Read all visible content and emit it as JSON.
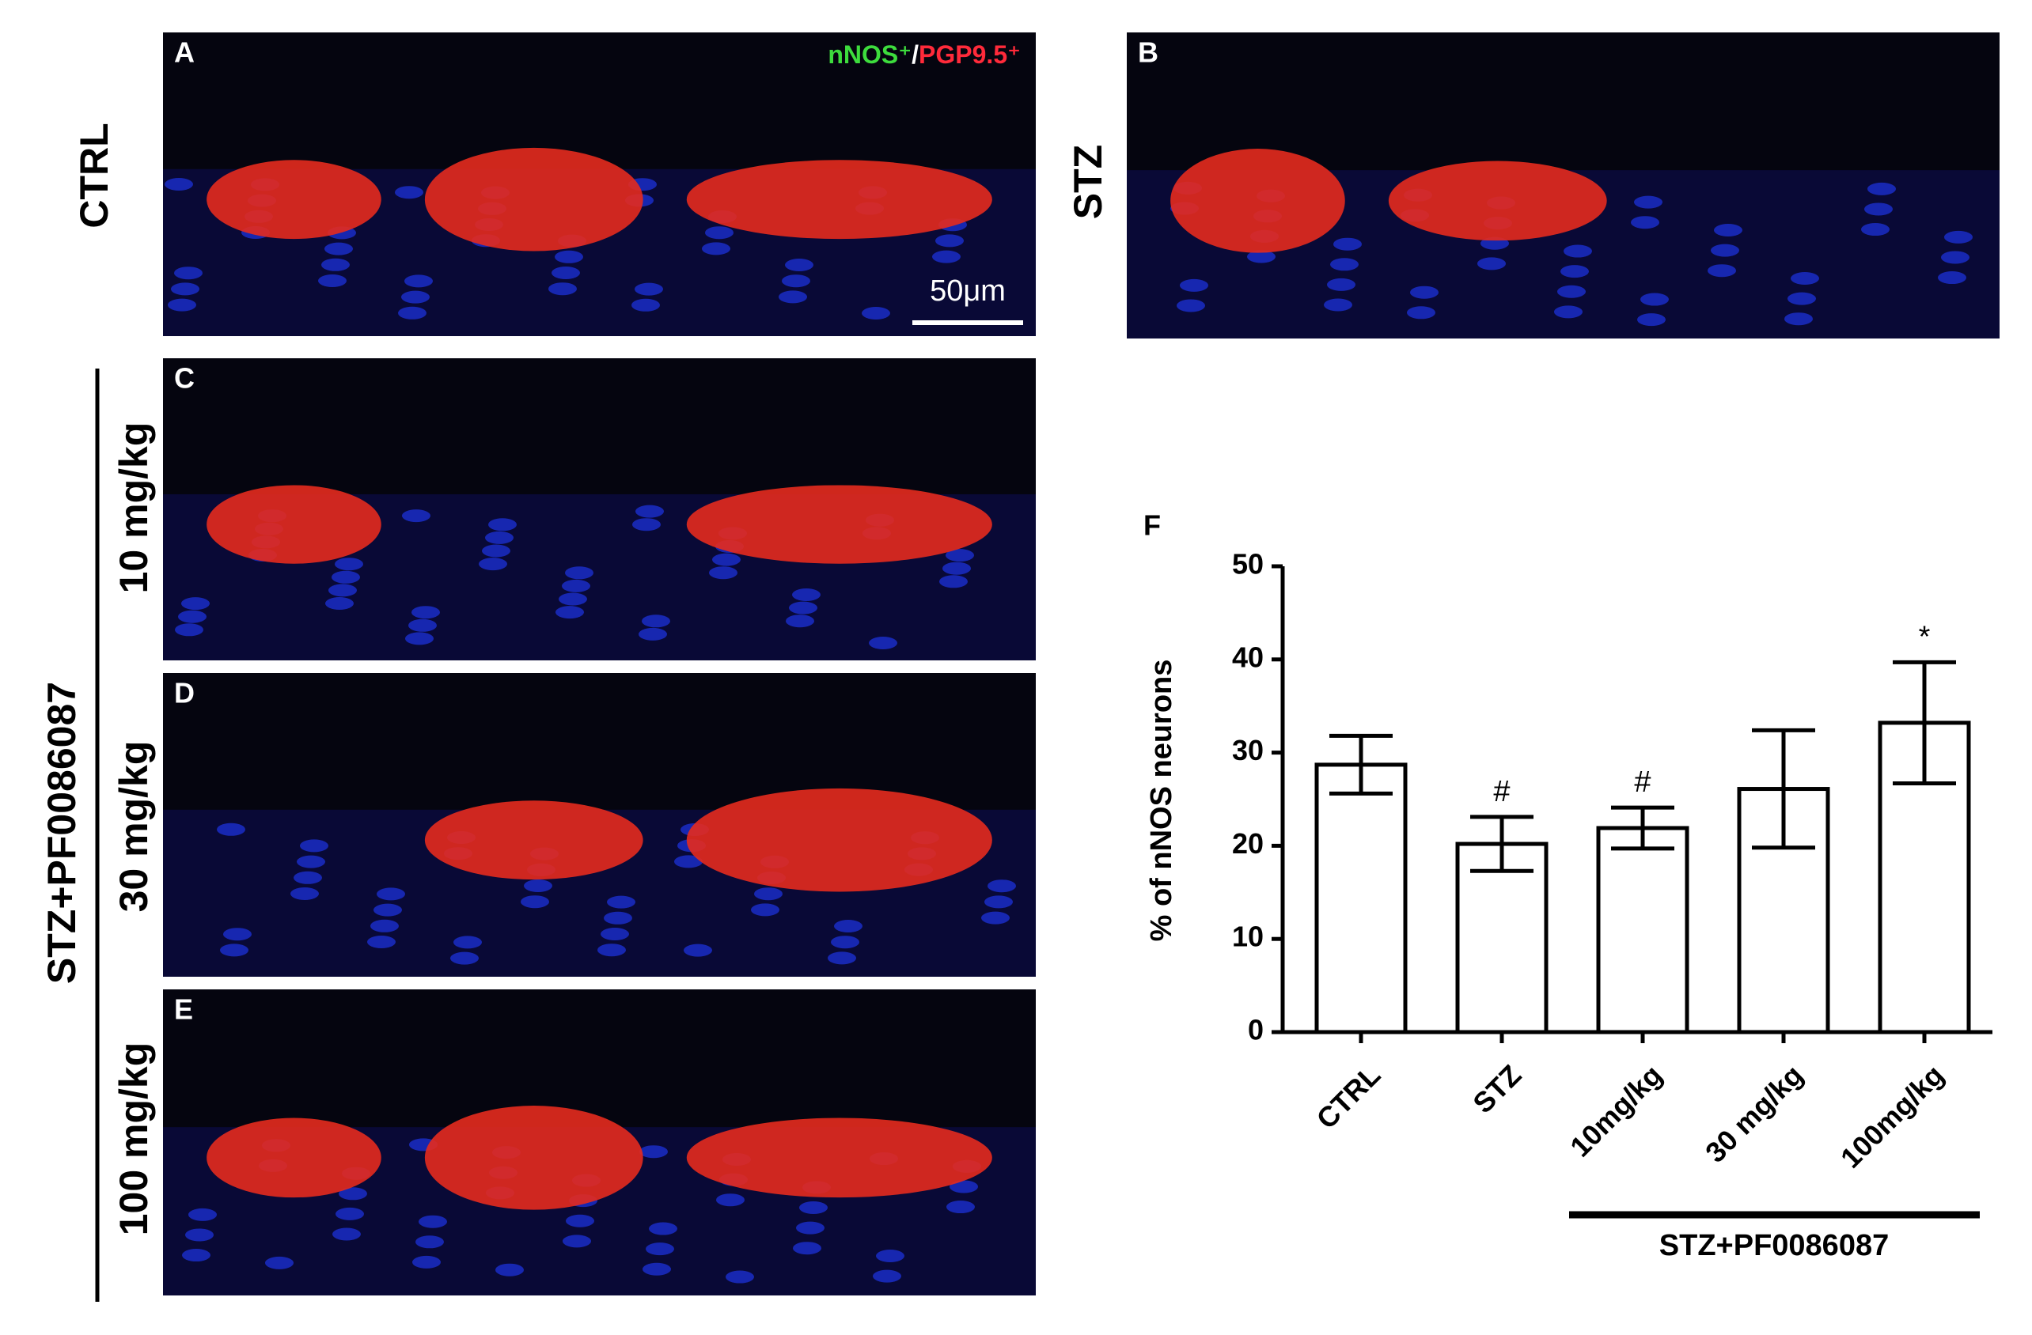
{
  "legend": {
    "green": "nNOS⁺",
    "separator": "/",
    "red": "PGP9.5⁺"
  },
  "scale_bar": "50μm",
  "group_label": "STZ+PF0086087",
  "panels": [
    {
      "letter": "A",
      "label": "CTRL"
    },
    {
      "letter": "B",
      "label": "STZ"
    },
    {
      "letter": "C",
      "label": "10 mg/kg"
    },
    {
      "letter": "D",
      "label": "30 mg/kg"
    },
    {
      "letter": "E",
      "label": "100 mg/kg"
    }
  ],
  "chart_data": {
    "type": "bar",
    "panel_letter": "F",
    "ylabel": "% of nNOS neurons",
    "categories": [
      "CTRL",
      "STZ",
      "10mg/kg",
      "30 mg/kg",
      "100mg/kg"
    ],
    "values": [
      28.7,
      20.2,
      21.9,
      26.1,
      33.2
    ],
    "errors": [
      3.1,
      2.9,
      2.2,
      6.3,
      6.5
    ],
    "annotations": [
      null,
      "#",
      "#",
      null,
      "*"
    ],
    "group_label": "STZ+PF0086087",
    "color": "#ffffff",
    "ylim": [
      0,
      50
    ],
    "yticks": [
      0,
      10,
      20,
      30,
      40,
      50
    ]
  }
}
